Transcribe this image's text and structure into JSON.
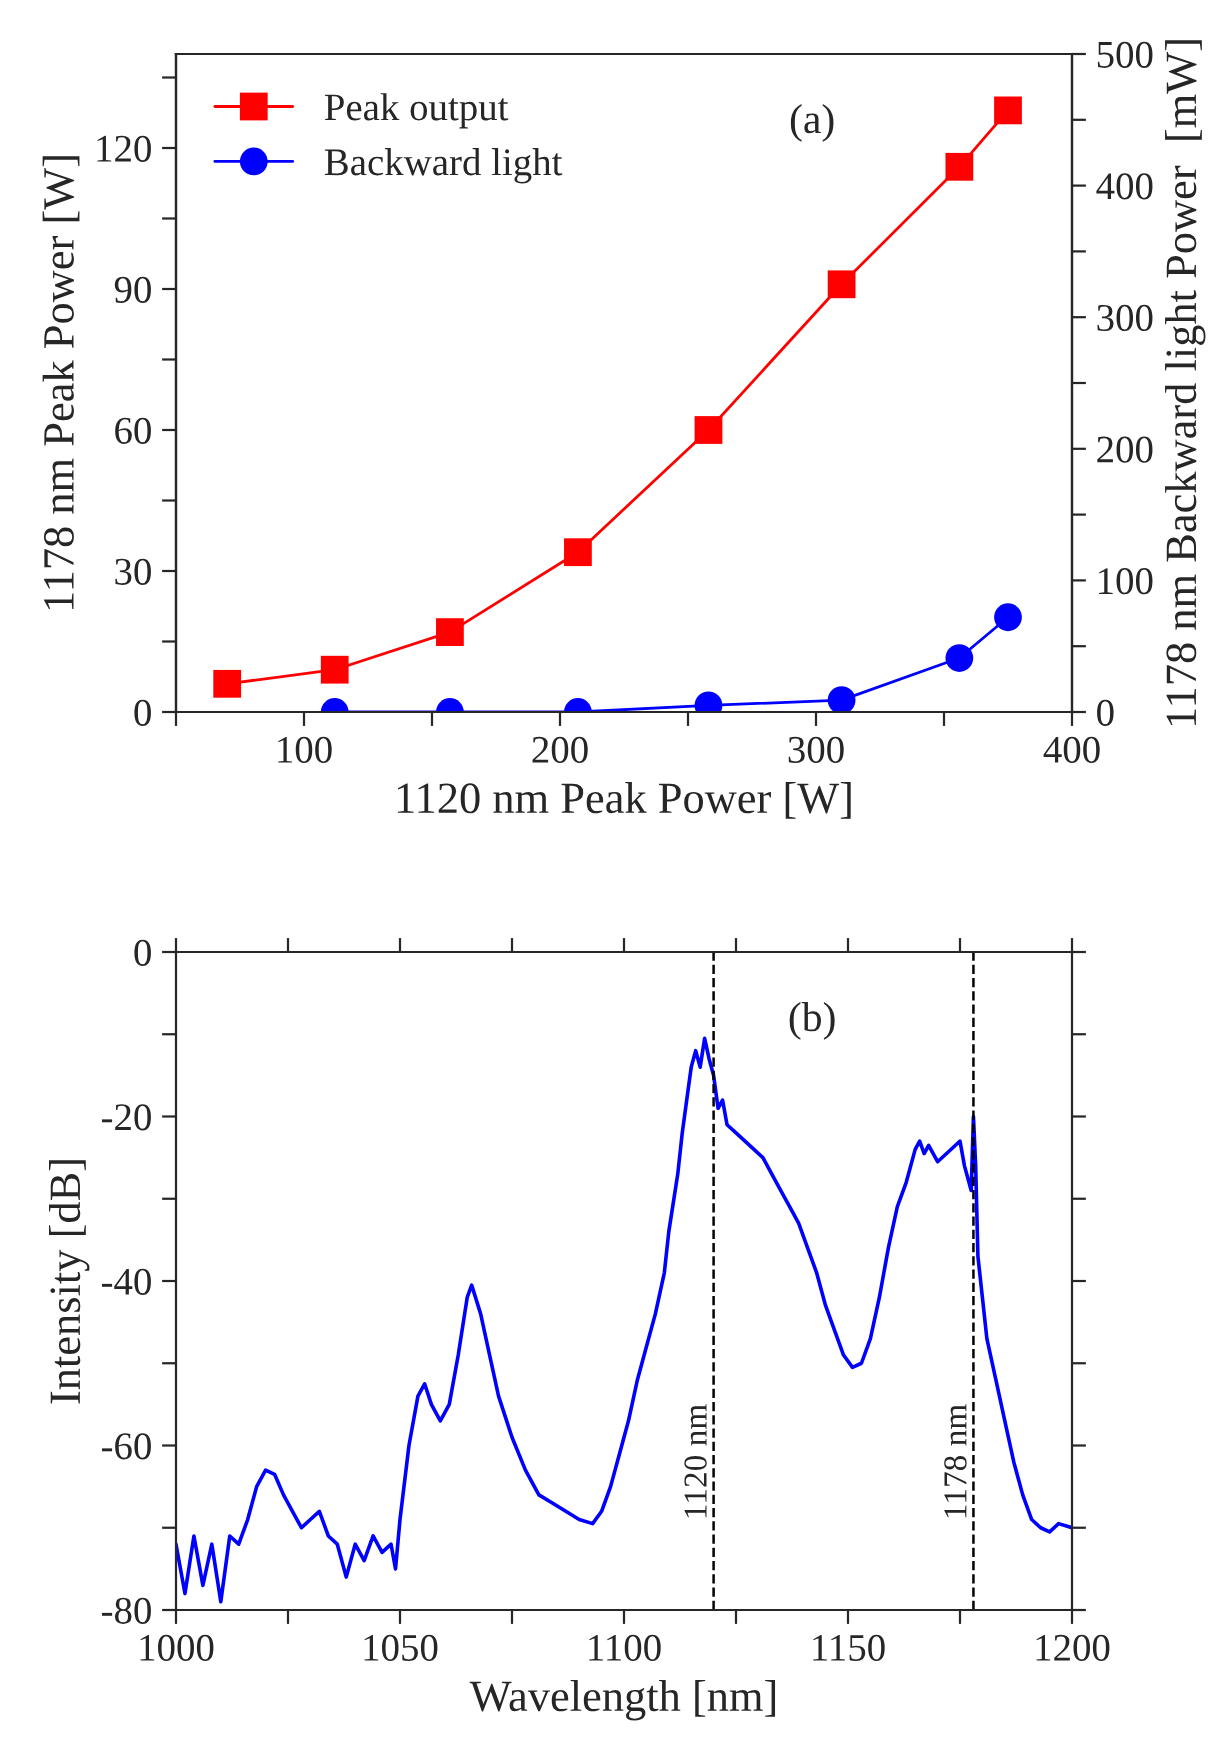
{
  "chart_data": [
    {
      "type": "line",
      "xlabel": "1120 nm Peak Power [W]",
      "ylabel": "1178 nm Peak Power [W]",
      "y2label": "1178 nm Backward light Power  [mW]",
      "annotations": [
        "(a)"
      ],
      "xlim": [
        50,
        400
      ],
      "xticks": [
        {
          "value": 50,
          "label": null
        },
        100,
        {
          "value": 150,
          "label": null
        },
        200,
        {
          "value": 250,
          "label": null
        },
        300,
        {
          "value": 350,
          "label": null
        },
        400
      ],
      "ylim": [
        0,
        140
      ],
      "yticks": [
        0,
        {
          "value": 15,
          "label": null
        },
        30,
        {
          "value": 45,
          "label": null
        },
        60,
        {
          "value": 75,
          "label": null
        },
        90,
        {
          "value": 105,
          "label": null
        },
        120,
        {
          "value": 135,
          "label": null
        }
      ],
      "y2lim": [
        0,
        500
      ],
      "y2ticks": [
        0,
        {
          "value": 50,
          "label": null
        },
        100,
        {
          "value": 150,
          "label": null
        },
        200,
        {
          "value": 250,
          "label": null
        },
        300,
        {
          "value": 350,
          "label": null
        },
        400,
        {
          "value": 450,
          "label": null
        },
        500
      ],
      "legend": "top left",
      "grid": false,
      "series": [
        {
          "name": "Peak output",
          "color": "#ff0000",
          "marker": "square",
          "x": [
            70,
            112,
            157,
            207,
            258,
            310,
            356,
            375
          ],
          "values": [
            6,
            9,
            17,
            34,
            60,
            91,
            116,
            128
          ]
        },
        {
          "name": "Backward light",
          "color": "#0000ff",
          "marker": "circle",
          "axis": "y2",
          "x": [
            112,
            157,
            207,
            258,
            310,
            356,
            375
          ],
          "values": [
            0,
            0,
            0,
            5,
            9,
            41,
            72
          ]
        }
      ]
    },
    {
      "type": "line",
      "xlabel": "Wavelength [nm]",
      "ylabel": "Intensity [dB]",
      "annotations": [
        "(b)"
      ],
      "xlim": [
        1000,
        1200
      ],
      "xticks": [
        1000,
        {
          "value": 1025,
          "label": null
        },
        1050,
        {
          "value": 1075,
          "label": null
        },
        1100,
        {
          "value": 1125,
          "label": null
        },
        1150,
        {
          "value": 1175,
          "label": null
        },
        1200
      ],
      "ylim": [
        -80,
        0
      ],
      "yticks": [
        -80,
        {
          "value": -70,
          "label": null
        },
        -60,
        {
          "value": -50,
          "label": null
        },
        -40,
        {
          "value": -30,
          "label": null
        },
        -20,
        {
          "value": -10,
          "label": null
        },
        0
      ],
      "grid": false,
      "ref_lines": [
        {
          "axis": "x",
          "value": 1120,
          "label": "1120 nm",
          "color": "#000000",
          "line_style": "dashed"
        },
        {
          "axis": "x",
          "value": 1178,
          "label": "1178 nm",
          "color": "#000000",
          "line_style": "dashed"
        }
      ],
      "series": [
        {
          "color": "#0000ff",
          "x": [
            1000,
            1002,
            1004,
            1006,
            1008,
            1010,
            1012,
            1014,
            1016,
            1018,
            1020,
            1022,
            1024,
            1026,
            1028,
            1030,
            1032,
            1034,
            1036,
            1038,
            1040,
            1042,
            1044,
            1046,
            1048,
            1049,
            1050,
            1052,
            1054,
            1055.5,
            1057,
            1059,
            1061,
            1063,
            1065,
            1066,
            1068,
            1070,
            1072,
            1075,
            1078,
            1081,
            1084,
            1087,
            1090,
            1093,
            1095,
            1097,
            1099,
            1101,
            1103,
            1105,
            1107,
            1109,
            1110,
            1112,
            1113,
            1114,
            1115,
            1116,
            1117,
            1118,
            1119,
            1120,
            1121,
            1122,
            1123,
            1125,
            1127,
            1129,
            1131,
            1133,
            1135,
            1137,
            1139,
            1141,
            1143,
            1145,
            1147,
            1149,
            1151,
            1153,
            1155,
            1157,
            1159,
            1161,
            1163,
            1165,
            1166,
            1167,
            1168,
            1170,
            1172,
            1174,
            1175,
            1176,
            1177.5,
            1178,
            1178.5,
            1179,
            1181,
            1183,
            1185,
            1187,
            1189,
            1191,
            1193,
            1195,
            1197,
            1200
          ],
          "values": [
            -72,
            -78,
            -71,
            -77,
            -72,
            -79,
            -71,
            -72,
            -69,
            -65,
            -63,
            -63.5,
            -66,
            -68,
            -70,
            -69,
            -68,
            -71,
            -72,
            -76,
            -72,
            -74,
            -71,
            -73,
            -72,
            -75,
            -69,
            -60,
            -54,
            -52.5,
            -55,
            -57,
            -55,
            -49,
            -42,
            -40.5,
            -44,
            -49,
            -54,
            -59,
            -63,
            -66,
            -67,
            -68,
            -69,
            -69.5,
            -68,
            -65,
            -61,
            -57,
            -52,
            -48,
            -44,
            -39,
            -34,
            -27,
            -22,
            -18,
            -14,
            -12,
            -14,
            -10.5,
            -13,
            -15,
            -19,
            -18,
            -21,
            -22,
            -23,
            -24,
            -25,
            -27,
            -29,
            -31,
            -33,
            -36,
            -39,
            -43,
            -46,
            -49,
            -50.5,
            -50,
            -47,
            -42,
            -36,
            -31,
            -28,
            -24,
            -23,
            -24.5,
            -23.5,
            -25.5,
            -24.5,
            -23.5,
            -23,
            -26,
            -29,
            -20,
            -26,
            -37,
            -47,
            -52,
            -57,
            -62,
            -66,
            -69,
            -70,
            -70.5,
            -69.5,
            -70
          ]
        }
      ]
    }
  ]
}
